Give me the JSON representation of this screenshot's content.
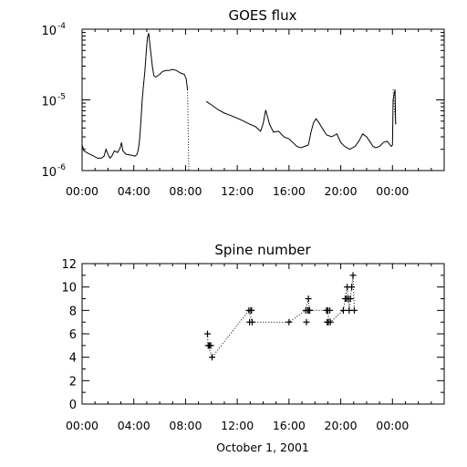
{
  "chart_data": [
    {
      "type": "line",
      "title": "GOES flux",
      "y_scale": "log",
      "ylim": [
        1e-06,
        0.0001
      ],
      "xlim": [
        "00:00",
        "28:00"
      ],
      "x_tick_labels": [
        "00:00",
        "04:00",
        "08:00",
        "12:00",
        "16:00",
        "20:00",
        "00:00"
      ],
      "y_ticks": [
        {
          "value": 1e-06,
          "base": "10",
          "exp": "-6"
        },
        {
          "value": 1e-05,
          "base": "10",
          "exp": "-5"
        },
        {
          "value": 0.0001,
          "base": "10",
          "exp": "-4"
        }
      ],
      "series": [
        {
          "x_hours": [
            0,
            0.15,
            0.35,
            0.6,
            0.9,
            1.2,
            1.5,
            1.7,
            1.85,
            2.0,
            2.15,
            2.3,
            2.5,
            2.75,
            2.95,
            3.05,
            3.15,
            3.4,
            3.8,
            4.1,
            4.25,
            4.35,
            4.45,
            4.55,
            4.65,
            4.75,
            4.85,
            4.95,
            5.05,
            5.15,
            5.25,
            5.35,
            5.45,
            5.55,
            5.7,
            5.85,
            6.0,
            6.2,
            6.45,
            6.7,
            7.0,
            7.3,
            7.6,
            7.9,
            8.05,
            8.15
          ],
          "flux": [
            2.3e-06,
            1.9e-06,
            1.8e-06,
            1.7e-06,
            1.6e-06,
            1.5e-06,
            1.5e-06,
            1.6e-06,
            2e-06,
            1.7e-06,
            1.5e-06,
            1.6e-06,
            1.9e-06,
            1.8e-06,
            2.1e-06,
            2.5e-06,
            1.9e-06,
            1.7e-06,
            1.65e-06,
            1.6e-06,
            1.7e-06,
            2e-06,
            2.8e-06,
            5e-06,
            1e-05,
            1.6e-05,
            2.5e-05,
            4.5e-05,
            7.5e-05,
            8.8e-05,
            6e-05,
            4e-05,
            2.8e-05,
            2.2e-05,
            2.1e-05,
            2.2e-05,
            2.3e-05,
            2.5e-05,
            2.6e-05,
            2.6e-05,
            2.7e-05,
            2.6e-05,
            2.4e-05,
            2.3e-05,
            2e-05,
            1.4e-05
          ]
        },
        {
          "x_hours": [
            9.6,
            10.0,
            10.5,
            11.0,
            11.5,
            12.0,
            12.5,
            13.0,
            13.4,
            13.8,
            14.0,
            14.2,
            14.5,
            14.8,
            15.2,
            15.6,
            16.0,
            16.3,
            16.6,
            16.9,
            17.2,
            17.5,
            17.7,
            17.9,
            18.1,
            18.3,
            18.6,
            18.9,
            19.3,
            19.7,
            20.0,
            20.3,
            20.7,
            21.1,
            21.4,
            21.7,
            22.0,
            22.3,
            22.5,
            22.7,
            23.0,
            23.3,
            23.6,
            23.9,
            24.0,
            24.05,
            24.2,
            24.25
          ],
          "flux": [
            9.5e-06,
            8.5e-06,
            7.3e-06,
            6.5e-06,
            6e-06,
            5.5e-06,
            5e-06,
            4.5e-06,
            4.2e-06,
            3.6e-06,
            4.6e-06,
            7.2e-06,
            4.5e-06,
            3.5e-06,
            3.6e-06,
            3e-06,
            2.8e-06,
            2.5e-06,
            2.2e-06,
            2.1e-06,
            2.2e-06,
            2.3e-06,
            3.5e-06,
            4.8e-06,
            5.4e-06,
            4.8e-06,
            3.9e-06,
            3.2e-06,
            3e-06,
            3.3e-06,
            2.5e-06,
            2.2e-06,
            2e-06,
            2.2e-06,
            2.6e-06,
            3.3e-06,
            3e-06,
            2.5e-06,
            2.2e-06,
            2.1e-06,
            2.2e-06,
            2.5e-06,
            2.6e-06,
            2.2e-06,
            2.3e-06,
            1e-05,
            1.4e-05,
            4.5e-06
          ]
        }
      ],
      "dotted_gaps": [
        {
          "x_hours": [
            8.15,
            8.2,
            8.25
          ],
          "flux": [
            1.4e-05,
            4e-06,
            1e-06
          ]
        },
        {
          "x_hours": [
            24.05,
            24.25
          ],
          "flux": [
            1.4e-05,
            4.5e-06
          ]
        }
      ]
    },
    {
      "type": "scatter",
      "title": "Spine number",
      "xlabel": "October 1, 2001",
      "ylim": [
        0,
        12
      ],
      "xlim": [
        "00:00",
        "28:00"
      ],
      "x_tick_labels": [
        "00:00",
        "04:00",
        "08:00",
        "12:00",
        "16:00",
        "20:00",
        "00:00"
      ],
      "y_tick_labels": [
        "0",
        "2",
        "4",
        "6",
        "8",
        "10",
        "12"
      ],
      "marker": "+",
      "connector": "dotted",
      "points": [
        {
          "x_hours": 9.7,
          "y": 6
        },
        {
          "x_hours": 9.75,
          "y": 5
        },
        {
          "x_hours": 9.85,
          "y": 5
        },
        {
          "x_hours": 9.95,
          "y": 5
        },
        {
          "x_hours": 10.05,
          "y": 4
        },
        {
          "x_hours": 12.9,
          "y": 8
        },
        {
          "x_hours": 12.95,
          "y": 7
        },
        {
          "x_hours": 13.05,
          "y": 8
        },
        {
          "x_hours": 13.1,
          "y": 8
        },
        {
          "x_hours": 13.15,
          "y": 7
        },
        {
          "x_hours": 16.0,
          "y": 7
        },
        {
          "x_hours": 17.3,
          "y": 8
        },
        {
          "x_hours": 17.35,
          "y": 7
        },
        {
          "x_hours": 17.45,
          "y": 8
        },
        {
          "x_hours": 17.5,
          "y": 9
        },
        {
          "x_hours": 17.55,
          "y": 8
        },
        {
          "x_hours": 17.6,
          "y": 8
        },
        {
          "x_hours": 18.9,
          "y": 8
        },
        {
          "x_hours": 18.95,
          "y": 7
        },
        {
          "x_hours": 19.0,
          "y": 8
        },
        {
          "x_hours": 19.05,
          "y": 7
        },
        {
          "x_hours": 19.15,
          "y": 8
        },
        {
          "x_hours": 19.2,
          "y": 7
        },
        {
          "x_hours": 20.2,
          "y": 8
        },
        {
          "x_hours": 20.35,
          "y": 9
        },
        {
          "x_hours": 20.45,
          "y": 9
        },
        {
          "x_hours": 20.5,
          "y": 10
        },
        {
          "x_hours": 20.6,
          "y": 9
        },
        {
          "x_hours": 20.65,
          "y": 8
        },
        {
          "x_hours": 20.75,
          "y": 9
        },
        {
          "x_hours": 20.85,
          "y": 10
        },
        {
          "x_hours": 20.95,
          "y": 11
        },
        {
          "x_hours": 21.05,
          "y": 8
        }
      ],
      "connector_path": [
        {
          "x_hours": 9.7,
          "y": 6
        },
        {
          "x_hours": 9.75,
          "y": 5
        },
        {
          "x_hours": 10.05,
          "y": 4
        },
        {
          "x_hours": 12.9,
          "y": 8
        },
        {
          "x_hours": 13.15,
          "y": 7
        },
        {
          "x_hours": 16.0,
          "y": 7
        },
        {
          "x_hours": 17.3,
          "y": 8
        },
        {
          "x_hours": 17.5,
          "y": 9
        },
        {
          "x_hours": 17.6,
          "y": 8
        },
        {
          "x_hours": 18.9,
          "y": 8
        },
        {
          "x_hours": 19.2,
          "y": 7
        },
        {
          "x_hours": 20.2,
          "y": 8
        },
        {
          "x_hours": 20.35,
          "y": 9
        },
        {
          "x_hours": 20.5,
          "y": 10
        },
        {
          "x_hours": 20.65,
          "y": 8
        },
        {
          "x_hours": 20.95,
          "y": 11
        },
        {
          "x_hours": 21.05,
          "y": 8
        }
      ]
    }
  ]
}
